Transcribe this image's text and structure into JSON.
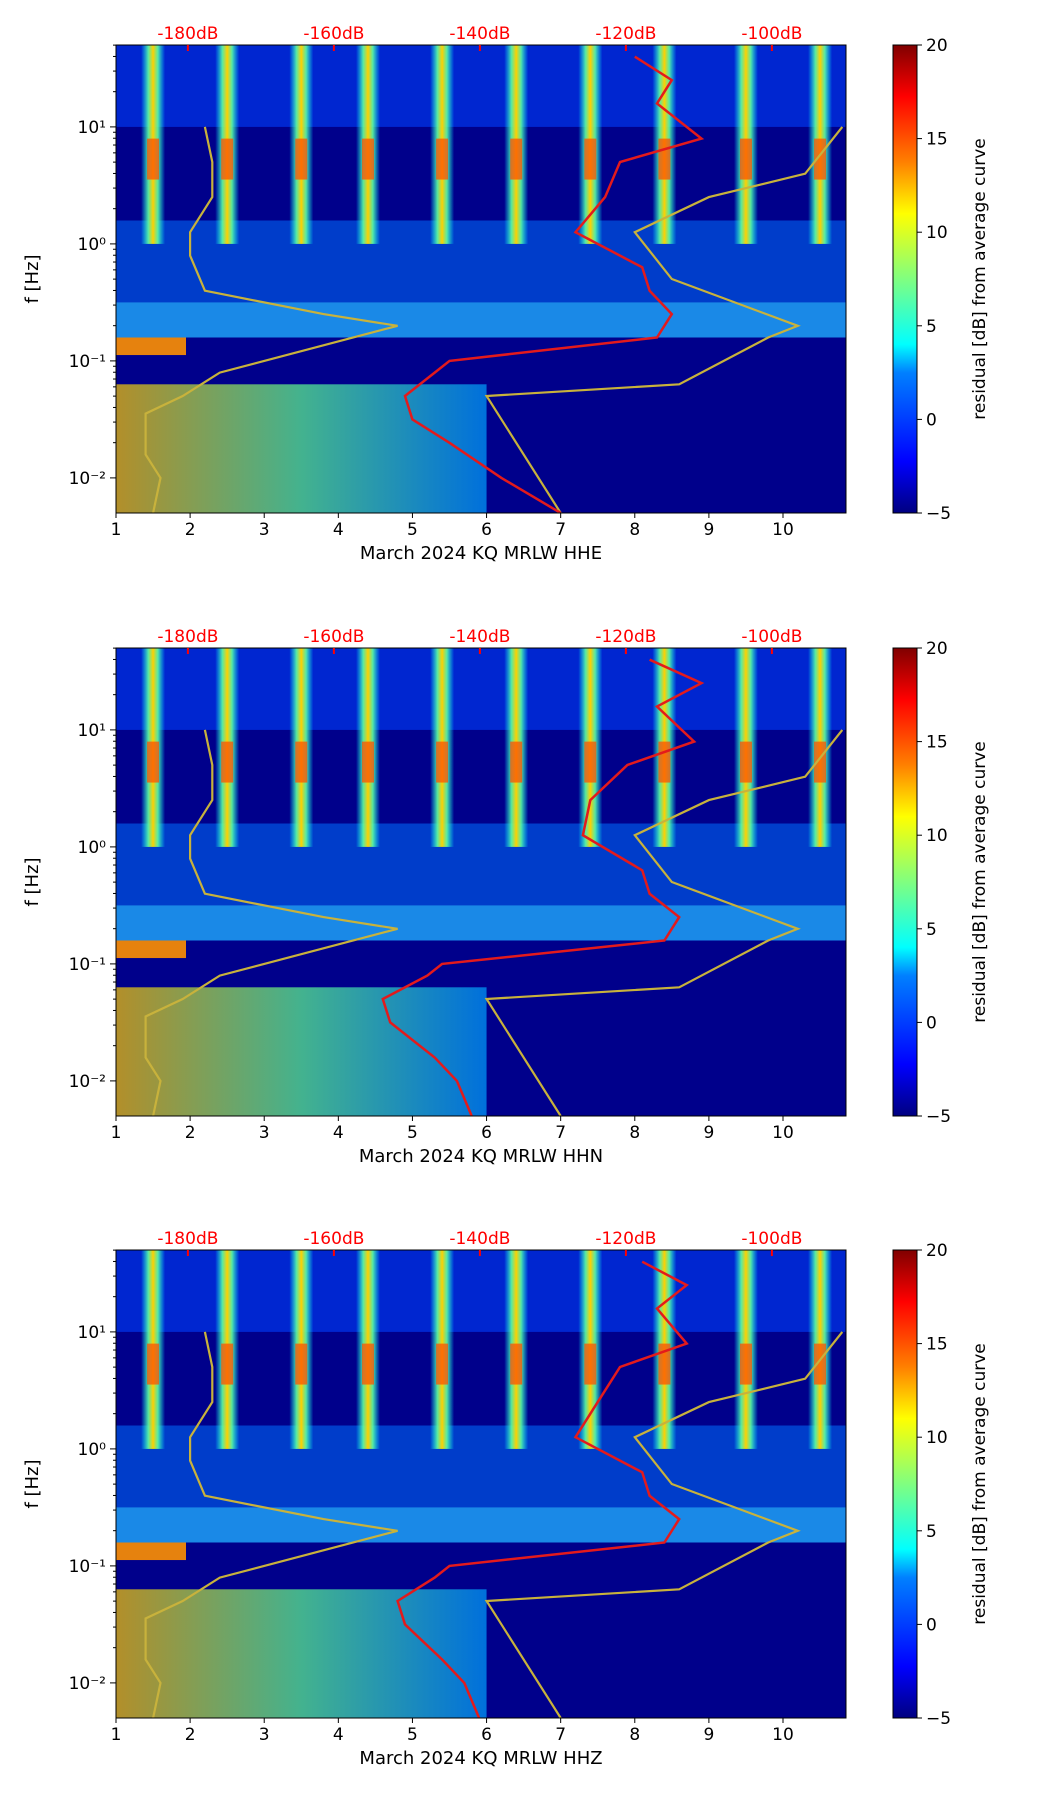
{
  "colors": {
    "db_label": "#ff0000",
    "median_curve": "#e31a1c",
    "noise_model": "#c8b23c",
    "axis": "#000000",
    "background_field": "#00008b"
  },
  "colormap_stops": [
    "#000080",
    "#0000ff",
    "#0080ff",
    "#00ffff",
    "#80ff80",
    "#ffff00",
    "#ff8000",
    "#ff0000",
    "#800000"
  ],
  "chart_data": [
    {
      "type": "heatmap",
      "xlabel": "March 2024 KQ MRLW  HHE",
      "ylabel": "f [Hz]",
      "x_ticks": [
        "1",
        "2",
        "3",
        "4",
        "5",
        "6",
        "7",
        "8",
        "9",
        "10"
      ],
      "y_ticks": [
        "10¹",
        "10⁰",
        "10⁻¹",
        "10⁻²"
      ],
      "xlim": [
        1,
        10.85
      ],
      "ylim_log10": [
        -2.3,
        1.7
      ],
      "db_ticks": [
        "-180dB",
        "-160dB",
        "-140dB",
        "-120dB",
        "-100dB"
      ],
      "colorbar": {
        "label": "residual [dB] from average curve",
        "ticks": [
          "20",
          "15",
          "10",
          "5",
          "0",
          "−5"
        ],
        "range": [
          -5,
          20
        ]
      },
      "active_days": [
        1.5,
        2.5,
        3.5,
        4.4,
        5.4,
        6.4,
        7.4,
        8.4,
        9.5,
        10.5
      ],
      "noise_model_low": {
        "day": [
          2.2,
          2.3,
          2.3,
          2.0,
          2.0,
          2.2,
          3.8,
          4.8,
          2.4,
          1.9,
          1.4,
          1.4,
          1.6,
          1.5
        ],
        "log10_f": [
          1.0,
          0.7,
          0.4,
          0.1,
          -0.1,
          -0.4,
          -0.6,
          -0.7,
          -1.1,
          -1.3,
          -1.45,
          -1.8,
          -2.0,
          -2.3
        ]
      },
      "noise_model_high": {
        "day": [
          10.8,
          10.3,
          9.0,
          8.0,
          8.5,
          10.2,
          9.8,
          8.6,
          6.0,
          7.0
        ],
        "log10_f": [
          1.0,
          0.6,
          0.4,
          0.1,
          -0.3,
          -0.7,
          -0.8,
          -1.2,
          -1.3,
          -2.3
        ]
      },
      "median_curve": {
        "day": [
          8.0,
          8.5,
          8.3,
          8.9,
          7.8,
          7.6,
          7.2,
          8.1,
          8.2,
          8.5,
          8.3,
          5.5,
          5.3,
          4.9,
          5.0,
          5.5,
          6.2,
          7.0
        ],
        "log10_f": [
          1.6,
          1.4,
          1.2,
          0.9,
          0.7,
          0.4,
          0.1,
          -0.2,
          -0.4,
          -0.6,
          -0.8,
          -1.0,
          -1.1,
          -1.3,
          -1.5,
          -1.7,
          -2.0,
          -2.3
        ]
      }
    },
    {
      "type": "heatmap",
      "xlabel": "March 2024 KQ MRLW  HHN",
      "ylabel": "f [Hz]",
      "x_ticks": [
        "1",
        "2",
        "3",
        "4",
        "5",
        "6",
        "7",
        "8",
        "9",
        "10"
      ],
      "y_ticks": [
        "10¹",
        "10⁰",
        "10⁻¹",
        "10⁻²"
      ],
      "xlim": [
        1,
        10.85
      ],
      "ylim_log10": [
        -2.3,
        1.7
      ],
      "db_ticks": [
        "-180dB",
        "-160dB",
        "-140dB",
        "-120dB",
        "-100dB"
      ],
      "colorbar": {
        "label": "residual [dB] from average curve",
        "ticks": [
          "20",
          "15",
          "10",
          "5",
          "0",
          "−5"
        ],
        "range": [
          -5,
          20
        ]
      },
      "active_days": [
        1.5,
        2.5,
        3.5,
        4.4,
        5.4,
        6.4,
        7.4,
        8.4,
        9.5,
        10.5
      ],
      "noise_model_low": {
        "day": [
          2.2,
          2.3,
          2.3,
          2.0,
          2.0,
          2.2,
          3.8,
          4.8,
          2.4,
          1.9,
          1.4,
          1.4,
          1.6,
          1.5
        ],
        "log10_f": [
          1.0,
          0.7,
          0.4,
          0.1,
          -0.1,
          -0.4,
          -0.6,
          -0.7,
          -1.1,
          -1.3,
          -1.45,
          -1.8,
          -2.0,
          -2.3
        ]
      },
      "noise_model_high": {
        "day": [
          10.8,
          10.3,
          9.0,
          8.0,
          8.5,
          10.2,
          9.8,
          8.6,
          6.0,
          7.0
        ],
        "log10_f": [
          1.0,
          0.6,
          0.4,
          0.1,
          -0.3,
          -0.7,
          -0.8,
          -1.2,
          -1.3,
          -2.3
        ]
      },
      "median_curve": {
        "day": [
          8.2,
          8.9,
          8.3,
          8.8,
          7.9,
          7.4,
          7.3,
          8.1,
          8.2,
          8.6,
          8.4,
          5.4,
          5.2,
          4.6,
          4.7,
          5.3,
          5.6,
          5.8
        ],
        "log10_f": [
          1.6,
          1.4,
          1.2,
          0.9,
          0.7,
          0.4,
          0.1,
          -0.2,
          -0.4,
          -0.6,
          -0.8,
          -1.0,
          -1.1,
          -1.3,
          -1.5,
          -1.8,
          -2.0,
          -2.3
        ]
      }
    },
    {
      "type": "heatmap",
      "xlabel": "March 2024 KQ MRLW  HHZ",
      "ylabel": "f [Hz]",
      "x_ticks": [
        "1",
        "2",
        "3",
        "4",
        "5",
        "6",
        "7",
        "8",
        "9",
        "10"
      ],
      "y_ticks": [
        "10¹",
        "10⁰",
        "10⁻¹",
        "10⁻²"
      ],
      "xlim": [
        1,
        10.85
      ],
      "ylim_log10": [
        -2.3,
        1.7
      ],
      "db_ticks": [
        "-180dB",
        "-160dB",
        "-140dB",
        "-120dB",
        "-100dB"
      ],
      "colorbar": {
        "label": "residual [dB] from average curve",
        "ticks": [
          "20",
          "15",
          "10",
          "5",
          "0",
          "−5"
        ],
        "range": [
          -5,
          20
        ]
      },
      "active_days": [
        1.5,
        2.5,
        3.5,
        4.4,
        5.4,
        6.4,
        7.4,
        8.4,
        9.5,
        10.5
      ],
      "noise_model_low": {
        "day": [
          2.2,
          2.3,
          2.3,
          2.0,
          2.0,
          2.2,
          3.8,
          4.8,
          2.4,
          1.9,
          1.4,
          1.4,
          1.6,
          1.5
        ],
        "log10_f": [
          1.0,
          0.7,
          0.4,
          0.1,
          -0.1,
          -0.4,
          -0.6,
          -0.7,
          -1.1,
          -1.3,
          -1.45,
          -1.8,
          -2.0,
          -2.3
        ]
      },
      "noise_model_high": {
        "day": [
          10.8,
          10.3,
          9.0,
          8.0,
          8.5,
          10.2,
          9.8,
          8.6,
          6.0,
          7.0
        ],
        "log10_f": [
          1.0,
          0.6,
          0.4,
          0.1,
          -0.3,
          -0.7,
          -0.8,
          -1.2,
          -1.3,
          -2.3
        ]
      },
      "median_curve": {
        "day": [
          8.1,
          8.7,
          8.3,
          8.7,
          7.8,
          7.5,
          7.2,
          8.1,
          8.2,
          8.6,
          8.4,
          5.5,
          5.3,
          4.8,
          4.9,
          5.4,
          5.7,
          5.9
        ],
        "log10_f": [
          1.6,
          1.4,
          1.2,
          0.9,
          0.7,
          0.4,
          0.1,
          -0.2,
          -0.4,
          -0.6,
          -0.8,
          -1.0,
          -1.1,
          -1.3,
          -1.5,
          -1.8,
          -2.0,
          -2.3
        ]
      }
    }
  ]
}
